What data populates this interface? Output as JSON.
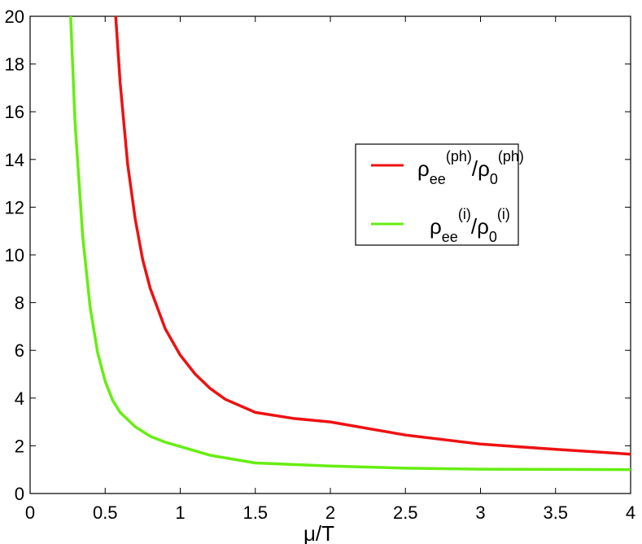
{
  "chart_data": {
    "type": "line",
    "title": "",
    "xlabel": "μ/T",
    "ylabel": "",
    "xlim": [
      0,
      4
    ],
    "ylim": [
      0,
      20
    ],
    "xticks": [
      "0",
      "0.5",
      "1",
      "1.5",
      "2",
      "2.5",
      "3",
      "3.5",
      "4"
    ],
    "yticks": [
      "0",
      "2",
      "4",
      "6",
      "8",
      "10",
      "12",
      "14",
      "16",
      "18",
      "20"
    ],
    "grid": false,
    "legend_position": "right",
    "series": [
      {
        "name": "ρee(ph)/ρ0(ph)",
        "legend": {
          "base1": "ρ",
          "sub1": "ee",
          "sup1": "(ph)",
          "sep": "/",
          "base2": "ρ",
          "sub2": "0",
          "sup2": "(ph)"
        },
        "color": "#ee1111",
        "x": [
          0.57,
          0.6,
          0.65,
          0.7,
          0.75,
          0.8,
          0.9,
          1.0,
          1.1,
          1.2,
          1.3,
          1.5,
          1.75,
          2.0,
          2.5,
          3.0,
          3.5,
          4.0
        ],
        "y": [
          20.0,
          17.2,
          13.8,
          11.5,
          9.8,
          8.6,
          6.9,
          5.8,
          5.0,
          4.4,
          3.95,
          3.4,
          3.15,
          3.0,
          2.45,
          2.07,
          1.85,
          1.65
        ]
      },
      {
        "name": "ρee(i)/ρ0(i)",
        "legend": {
          "base1": "ρ",
          "sub1": "ee",
          "sup1": "(i)",
          "sep": "/",
          "base2": "ρ",
          "sub2": "0",
          "sup2": "(i)"
        },
        "color": "#66ee11",
        "x": [
          0.27,
          0.3,
          0.35,
          0.4,
          0.45,
          0.5,
          0.55,
          0.6,
          0.7,
          0.8,
          0.9,
          1.0,
          1.2,
          1.5,
          2.0,
          2.5,
          3.0,
          3.5,
          4.0
        ],
        "y": [
          20.0,
          15.5,
          10.8,
          7.8,
          5.9,
          4.7,
          3.9,
          3.4,
          2.8,
          2.4,
          2.15,
          1.97,
          1.6,
          1.28,
          1.15,
          1.06,
          1.02,
          1.01,
          1.0
        ]
      }
    ]
  }
}
